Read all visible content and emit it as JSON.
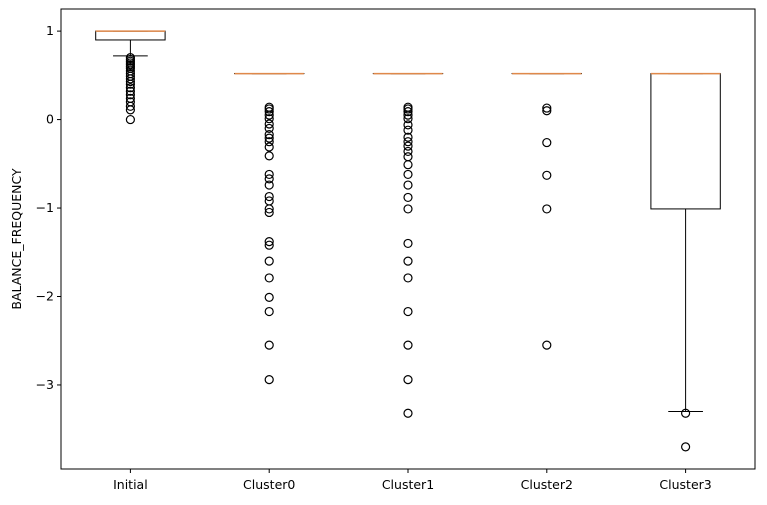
{
  "chart_data": {
    "type": "boxplot",
    "title": "",
    "xlabel": "",
    "ylabel": "BALANCE_FREQUENCY",
    "ylim": [
      -3.95,
      1.25
    ],
    "yticks": [
      1,
      0,
      -1,
      -2,
      -3
    ],
    "ytick_labels": [
      "1",
      "0",
      "−1",
      "−2",
      "−3"
    ],
    "grid": false,
    "legend": "none",
    "colors": {
      "box": "#000000",
      "median": "#e0894a",
      "flier": "#000000"
    },
    "categories": [
      "Initial",
      "Cluster0",
      "Cluster1",
      "Cluster2",
      "Cluster3"
    ],
    "boxes": [
      {
        "name": "Initial",
        "whisker_low": 0.72,
        "q1": 0.9,
        "median": 1.0,
        "q3": 1.0,
        "whisker_high": 1.0,
        "fliers": [
          0.7,
          0.68,
          0.66,
          0.64,
          0.62,
          0.6,
          0.58,
          0.55,
          0.52,
          0.49,
          0.46,
          0.43,
          0.4,
          0.36,
          0.32,
          0.28,
          0.24,
          0.2,
          0.15,
          0.11,
          0.0
        ]
      },
      {
        "name": "Cluster0",
        "whisker_low": 0.52,
        "q1": 0.52,
        "median": 0.52,
        "q3": 0.52,
        "whisker_high": 0.52,
        "fliers": [
          0.14,
          0.12,
          0.09,
          0.05,
          0.01,
          -0.05,
          -0.1,
          -0.17,
          -0.21,
          -0.25,
          -0.31,
          -0.41,
          -0.62,
          -0.67,
          -0.74,
          -0.87,
          -0.92,
          -1.01,
          -1.05,
          -1.38,
          -1.42,
          -1.6,
          -1.79,
          -2.01,
          -2.17,
          -2.55,
          -2.94
        ]
      },
      {
        "name": "Cluster1",
        "whisker_low": 0.52,
        "q1": 0.52,
        "median": 0.52,
        "q3": 0.52,
        "whisker_high": 0.52,
        "fliers": [
          0.14,
          0.12,
          0.09,
          0.05,
          0.01,
          -0.06,
          -0.12,
          -0.2,
          -0.25,
          -0.3,
          -0.36,
          -0.42,
          -0.51,
          -0.62,
          -0.74,
          -0.88,
          -1.01,
          -1.4,
          -1.6,
          -1.79,
          -2.17,
          -2.55,
          -2.94,
          -3.32
        ]
      },
      {
        "name": "Cluster2",
        "whisker_low": 0.52,
        "q1": 0.52,
        "median": 0.52,
        "q3": 0.52,
        "whisker_high": 0.52,
        "fliers": [
          0.13,
          0.1,
          -0.26,
          -0.63,
          -1.01,
          -2.55
        ]
      },
      {
        "name": "Cluster3",
        "whisker_low": -3.3,
        "q1": -1.01,
        "median": 0.52,
        "q3": 0.52,
        "whisker_high": 0.52,
        "fliers": [
          -3.32,
          -3.7
        ]
      }
    ]
  }
}
